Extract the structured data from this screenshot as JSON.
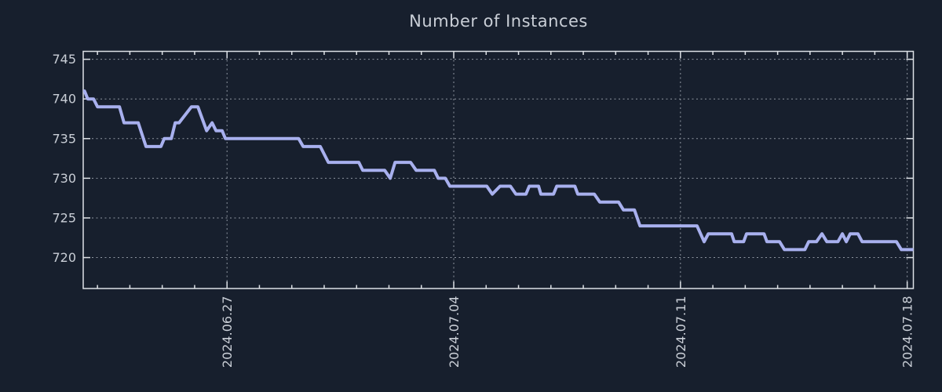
{
  "colors": {
    "background": "#171f2d",
    "line": "#a8b0ee",
    "axis": "#dde1e6",
    "grid": "#8f96a1",
    "text": "#c9ced6"
  },
  "chart_data": {
    "type": "line",
    "title": "Number of Instances",
    "legend": null,
    "grid": "dotted",
    "x_unit": "days since 2024-06-22 00:00",
    "xlim": [
      0.56,
      26.19
    ],
    "ylim": [
      716.1,
      746.0
    ],
    "y_ticks": [
      745,
      740,
      735,
      730,
      725,
      720
    ],
    "x_major_ticks": [
      {
        "day": 5,
        "label": "2024.06.27"
      },
      {
        "day": 12,
        "label": "2024.07.04"
      },
      {
        "day": 19,
        "label": "2024.07.11"
      },
      {
        "day": 26,
        "label": "2024.07.18"
      }
    ],
    "x_minor_tick_interval_days": 1,
    "points": [
      [
        0.56,
        741
      ],
      [
        0.6,
        741
      ],
      [
        0.7,
        740
      ],
      [
        0.88,
        740
      ],
      [
        1.0,
        739
      ],
      [
        1.68,
        739
      ],
      [
        1.82,
        737
      ],
      [
        2.26,
        737
      ],
      [
        2.5,
        734
      ],
      [
        2.96,
        734
      ],
      [
        3.06,
        735
      ],
      [
        3.28,
        735
      ],
      [
        3.4,
        737
      ],
      [
        3.52,
        737
      ],
      [
        3.9,
        739
      ],
      [
        4.1,
        739
      ],
      [
        4.37,
        736
      ],
      [
        4.54,
        737
      ],
      [
        4.66,
        736
      ],
      [
        4.85,
        736
      ],
      [
        4.95,
        735
      ],
      [
        7.21,
        735
      ],
      [
        7.35,
        734
      ],
      [
        7.88,
        734
      ],
      [
        8.13,
        732
      ],
      [
        9.07,
        732
      ],
      [
        9.19,
        731
      ],
      [
        9.87,
        731
      ],
      [
        10.04,
        730
      ],
      [
        10.19,
        732
      ],
      [
        10.67,
        732
      ],
      [
        10.84,
        731
      ],
      [
        11.4,
        731
      ],
      [
        11.52,
        730
      ],
      [
        11.74,
        730
      ],
      [
        11.88,
        729
      ],
      [
        13.02,
        729
      ],
      [
        13.19,
        728
      ],
      [
        13.43,
        729
      ],
      [
        13.75,
        729
      ],
      [
        13.92,
        728
      ],
      [
        14.23,
        728
      ],
      [
        14.33,
        729
      ],
      [
        14.62,
        729
      ],
      [
        14.69,
        728
      ],
      [
        15.08,
        728
      ],
      [
        15.18,
        729
      ],
      [
        15.74,
        729
      ],
      [
        15.83,
        728
      ],
      [
        16.34,
        728
      ],
      [
        16.51,
        727
      ],
      [
        17.09,
        727
      ],
      [
        17.24,
        726
      ],
      [
        17.58,
        726
      ],
      [
        17.75,
        724
      ],
      [
        19.51,
        724
      ],
      [
        19.73,
        722
      ],
      [
        19.86,
        723
      ],
      [
        20.58,
        723
      ],
      [
        20.66,
        722
      ],
      [
        20.95,
        722
      ],
      [
        21.04,
        723
      ],
      [
        21.58,
        723
      ],
      [
        21.67,
        722
      ],
      [
        22.06,
        722
      ],
      [
        22.21,
        721
      ],
      [
        22.84,
        721
      ],
      [
        22.96,
        722
      ],
      [
        23.2,
        722
      ],
      [
        23.37,
        723
      ],
      [
        23.52,
        722
      ],
      [
        23.86,
        722
      ],
      [
        24.0,
        723
      ],
      [
        24.12,
        722
      ],
      [
        24.24,
        723
      ],
      [
        24.48,
        723
      ],
      [
        24.61,
        722
      ],
      [
        25.67,
        722
      ],
      [
        25.82,
        721
      ],
      [
        26.19,
        721
      ]
    ]
  }
}
